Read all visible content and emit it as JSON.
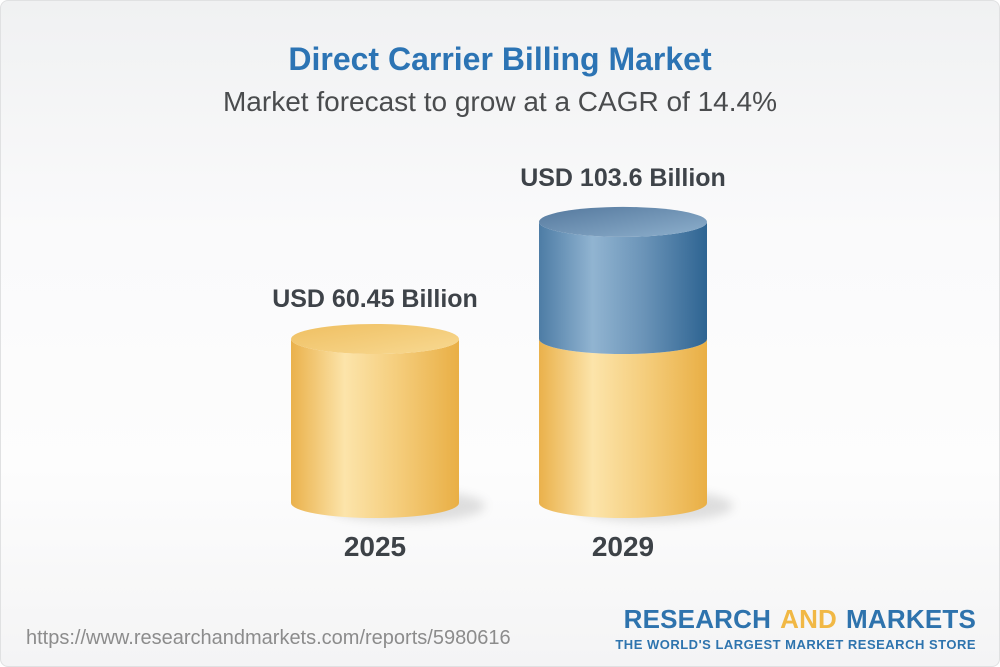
{
  "header": {
    "title": "Direct Carrier Billing Market",
    "subtitle": "Market forecast to grow at a CAGR of 14.4%",
    "title_color": "#2c74b4",
    "subtitle_color": "#4a4c4e"
  },
  "chart_data": {
    "type": "bar",
    "subtype": "3d-cylinder-stacked",
    "title": "Direct Carrier Billing Market",
    "unit": "USD Billion",
    "cagr_pct": 14.4,
    "grid": false,
    "legend_position": "none",
    "categories": [
      "2025",
      "2029"
    ],
    "bars": [
      {
        "category": "2025",
        "value_label": "USD 60.45 Billion",
        "total": 60.45,
        "segments": [
          {
            "name": "2025-base",
            "value": 60.45,
            "color_key": "yellow"
          }
        ]
      },
      {
        "category": "2029",
        "value_label": "USD 103.6 Billion",
        "total": 103.6,
        "segments": [
          {
            "name": "2025-carryover",
            "value": 60.45,
            "color_key": "yellow"
          },
          {
            "name": "growth-2025-2029",
            "value": 43.15,
            "color_key": "blue"
          }
        ]
      }
    ],
    "palette": {
      "yellow": {
        "body": [
          "#EAB14B",
          "#FCE4AA",
          "#F5CE7E",
          "#E9AF45"
        ],
        "top": [
          "#EFBF61",
          "#F8D992"
        ]
      },
      "blue": {
        "body": [
          "#4D7CA5",
          "#91B4D1",
          "#6B94B8",
          "#2E6492"
        ],
        "top": [
          "#54789D",
          "#8EB0CD"
        ]
      }
    },
    "label_color": "#3e4349",
    "year_label_color": "#3d4247"
  },
  "footer": {
    "url": "https://www.researchandmarkets.com/reports/5980616",
    "logo": {
      "research": "RESEARCH",
      "and": "AND",
      "markets": "MARKETS",
      "tagline": "THE WORLD'S LARGEST MARKET RESEARCH STORE",
      "blue": "#2e73ad",
      "gold": "#f1b845"
    }
  }
}
